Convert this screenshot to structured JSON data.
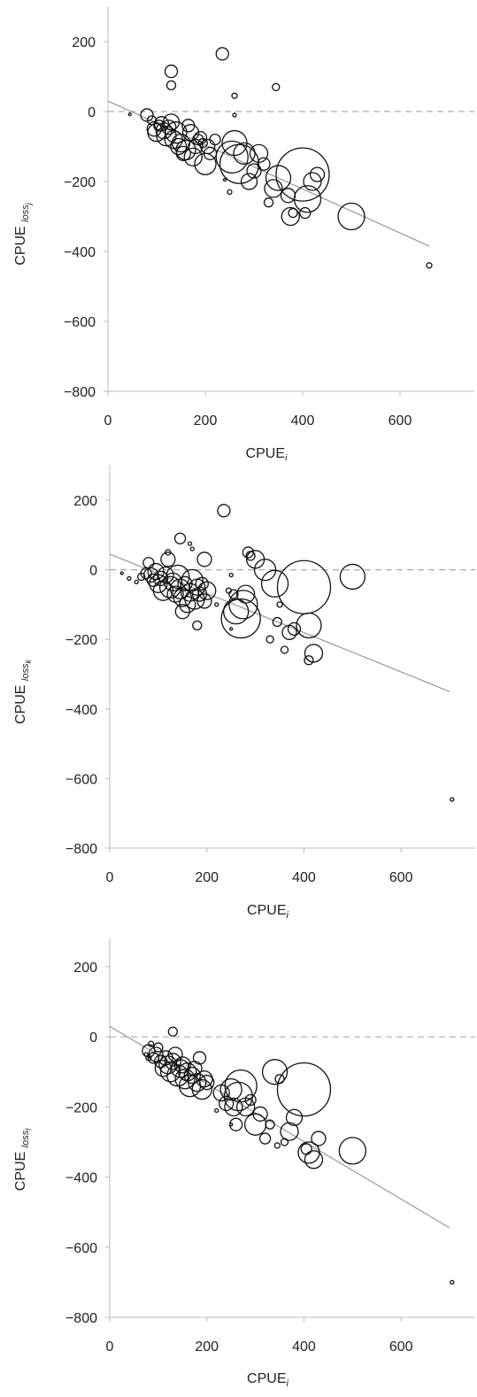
{
  "chart_data": [
    {
      "type": "scatter",
      "xlabel_base": "CPUE",
      "xlabel_sub": "i",
      "ylabel_base": "CPUE ",
      "ylabel_sub": "loss",
      "ylabel_subsub": "j",
      "xlim": [
        0,
        700
      ],
      "ylim": [
        -800,
        200
      ],
      "xticks": [
        0,
        200,
        400,
        600
      ],
      "yticks": [
        200,
        0,
        -200,
        -400,
        -600,
        -800
      ],
      "zero_line": true,
      "trend_line": [
        [
          0,
          30
        ],
        [
          660,
          -385
        ]
      ],
      "points": [
        [
          45,
          -8,
          1.5
        ],
        [
          80,
          -10,
          7
        ],
        [
          90,
          -25,
          5
        ],
        [
          95,
          -50,
          8
        ],
        [
          100,
          -60,
          10
        ],
        [
          105,
          -40,
          6
        ],
        [
          110,
          -35,
          8
        ],
        [
          115,
          -55,
          9
        ],
        [
          120,
          -70,
          11
        ],
        [
          125,
          -45,
          8
        ],
        [
          130,
          -30,
          9
        ],
        [
          135,
          -80,
          10
        ],
        [
          140,
          -60,
          12
        ],
        [
          145,
          -100,
          9
        ],
        [
          150,
          -90,
          10
        ],
        [
          155,
          -120,
          8
        ],
        [
          160,
          -110,
          11
        ],
        [
          165,
          -40,
          7
        ],
        [
          170,
          -60,
          9
        ],
        [
          175,
          -130,
          10
        ],
        [
          180,
          -100,
          8
        ],
        [
          185,
          -80,
          6
        ],
        [
          190,
          -75,
          7
        ],
        [
          195,
          -90,
          5
        ],
        [
          200,
          -150,
          12
        ],
        [
          205,
          -100,
          8
        ],
        [
          210,
          -120,
          7
        ],
        [
          220,
          -80,
          6
        ],
        [
          130,
          115,
          7
        ],
        [
          130,
          75,
          5
        ],
        [
          235,
          165,
          7
        ],
        [
          260,
          45,
          3
        ],
        [
          345,
          70,
          4
        ],
        [
          260,
          -10,
          2
        ],
        [
          250,
          -230,
          2.5
        ],
        [
          255,
          -130,
          18
        ],
        [
          260,
          -90,
          14
        ],
        [
          270,
          -150,
          22
        ],
        [
          280,
          -120,
          12
        ],
        [
          290,
          -200,
          9
        ],
        [
          300,
          -170,
          8
        ],
        [
          310,
          -120,
          10
        ],
        [
          320,
          -150,
          7
        ],
        [
          330,
          -260,
          5
        ],
        [
          340,
          -220,
          10
        ],
        [
          350,
          -190,
          14
        ],
        [
          370,
          -240,
          8
        ],
        [
          375,
          -300,
          10
        ],
        [
          380,
          -290,
          5
        ],
        [
          400,
          -180,
          30
        ],
        [
          405,
          -290,
          6
        ],
        [
          410,
          -250,
          15
        ],
        [
          420,
          -200,
          10
        ],
        [
          430,
          -180,
          8
        ],
        [
          500,
          -300,
          15
        ],
        [
          660,
          -440,
          3
        ],
        [
          240,
          -195,
          1.5
        ]
      ]
    },
    {
      "type": "scatter",
      "xlabel_base": "CPUE",
      "xlabel_sub": "i",
      "ylabel_base": "CPUE ",
      "ylabel_sub": "loss",
      "ylabel_subsub": "k",
      "xlim": [
        0,
        700
      ],
      "ylim": [
        -800,
        200
      ],
      "xticks": [
        0,
        200,
        400,
        600
      ],
      "yticks": [
        200,
        0,
        -200,
        -400,
        -600,
        -800
      ],
      "zero_line": true,
      "trend_line": [
        [
          0,
          45
        ],
        [
          700,
          -350
        ]
      ],
      "points": [
        [
          25,
          -10,
          1.5
        ],
        [
          40,
          -25,
          2
        ],
        [
          55,
          -35,
          2
        ],
        [
          65,
          -20,
          4
        ],
        [
          75,
          -10,
          6
        ],
        [
          80,
          20,
          6
        ],
        [
          85,
          -15,
          8
        ],
        [
          90,
          -30,
          7
        ],
        [
          95,
          -5,
          9
        ],
        [
          100,
          -40,
          10
        ],
        [
          105,
          -25,
          8
        ],
        [
          110,
          -60,
          11
        ],
        [
          115,
          -15,
          9
        ],
        [
          120,
          30,
          8
        ],
        [
          125,
          -50,
          12
        ],
        [
          130,
          -35,
          10
        ],
        [
          135,
          -70,
          9
        ],
        [
          140,
          -20,
          13
        ],
        [
          145,
          -55,
          11
        ],
        [
          150,
          -80,
          10
        ],
        [
          155,
          -40,
          8
        ],
        [
          160,
          -100,
          9
        ],
        [
          165,
          -65,
          10
        ],
        [
          170,
          -30,
          12
        ],
        [
          175,
          -85,
          11
        ],
        [
          180,
          -50,
          9
        ],
        [
          185,
          -70,
          8
        ],
        [
          190,
          -40,
          7
        ],
        [
          195,
          -90,
          8
        ],
        [
          200,
          -60,
          10
        ],
        [
          120,
          50,
          3
        ],
        [
          145,
          90,
          6
        ],
        [
          165,
          75,
          2
        ],
        [
          170,
          60,
          2
        ],
        [
          195,
          30,
          8
        ],
        [
          180,
          -160,
          5
        ],
        [
          150,
          -120,
          8
        ],
        [
          220,
          -100,
          2
        ],
        [
          235,
          170,
          7
        ],
        [
          245,
          -60,
          3
        ],
        [
          255,
          -70,
          5
        ],
        [
          260,
          -120,
          14
        ],
        [
          270,
          -140,
          22
        ],
        [
          275,
          -100,
          16
        ],
        [
          280,
          -70,
          10
        ],
        [
          285,
          50,
          6
        ],
        [
          290,
          40,
          5
        ],
        [
          300,
          30,
          10
        ],
        [
          320,
          0,
          12
        ],
        [
          330,
          -200,
          4
        ],
        [
          340,
          -40,
          15
        ],
        [
          345,
          -150,
          5
        ],
        [
          350,
          -100,
          3
        ],
        [
          360,
          -230,
          4
        ],
        [
          370,
          -180,
          8
        ],
        [
          380,
          -170,
          7
        ],
        [
          400,
          -50,
          30
        ],
        [
          410,
          -160,
          14
        ],
        [
          420,
          -240,
          10
        ],
        [
          410,
          -260,
          5
        ],
        [
          500,
          -20,
          14
        ],
        [
          705,
          -660,
          2
        ],
        [
          250,
          -170,
          1.5
        ],
        [
          250,
          -15,
          2
        ]
      ]
    },
    {
      "type": "scatter",
      "xlabel_base": "CPUE",
      "xlabel_sub": "i",
      "ylabel_base": "CPUE ",
      "ylabel_sub": "loss",
      "ylabel_subsub": "l",
      "xlim": [
        0,
        700
      ],
      "ylim": [
        -800,
        200
      ],
      "xticks": [
        0,
        200,
        400,
        600
      ],
      "yticks": [
        200,
        0,
        -200,
        -400,
        -600,
        -800
      ],
      "zero_line": true,
      "trend_line": [
        [
          0,
          30
        ],
        [
          700,
          -545
        ]
      ],
      "points": [
        [
          80,
          -40,
          7
        ],
        [
          85,
          -20,
          3
        ],
        [
          90,
          -60,
          6
        ],
        [
          95,
          -50,
          8
        ],
        [
          100,
          -30,
          5
        ],
        [
          105,
          -70,
          7
        ],
        [
          110,
          -90,
          9
        ],
        [
          115,
          -60,
          8
        ],
        [
          120,
          -80,
          10
        ],
        [
          125,
          -100,
          11
        ],
        [
          130,
          -70,
          9
        ],
        [
          135,
          -50,
          8
        ],
        [
          140,
          -110,
          12
        ],
        [
          145,
          -90,
          10
        ],
        [
          150,
          -80,
          9
        ],
        [
          155,
          -120,
          11
        ],
        [
          160,
          -100,
          10
        ],
        [
          165,
          -140,
          12
        ],
        [
          170,
          -110,
          9
        ],
        [
          175,
          -90,
          8
        ],
        [
          180,
          -130,
          10
        ],
        [
          185,
          -60,
          7
        ],
        [
          190,
          -150,
          11
        ],
        [
          195,
          -120,
          9
        ],
        [
          200,
          -130,
          8
        ],
        [
          130,
          15,
          5
        ],
        [
          80,
          -60,
          3
        ],
        [
          75,
          -50,
          2
        ],
        [
          220,
          -210,
          2
        ],
        [
          230,
          -160,
          9
        ],
        [
          240,
          -190,
          8
        ],
        [
          250,
          -150,
          12
        ],
        [
          255,
          -200,
          10
        ],
        [
          260,
          -250,
          7
        ],
        [
          265,
          -170,
          16
        ],
        [
          270,
          -140,
          18
        ],
        [
          280,
          -200,
          10
        ],
        [
          290,
          -180,
          6
        ],
        [
          300,
          -250,
          12
        ],
        [
          310,
          -220,
          8
        ],
        [
          320,
          -290,
          6
        ],
        [
          330,
          -250,
          5
        ],
        [
          340,
          -100,
          14
        ],
        [
          345,
          -310,
          3
        ],
        [
          350,
          -120,
          5
        ],
        [
          360,
          -300,
          4
        ],
        [
          370,
          -270,
          10
        ],
        [
          380,
          -230,
          9
        ],
        [
          400,
          -150,
          30
        ],
        [
          405,
          -320,
          6
        ],
        [
          410,
          -330,
          12
        ],
        [
          420,
          -350,
          10
        ],
        [
          430,
          -290,
          8
        ],
        [
          500,
          -325,
          15
        ],
        [
          705,
          -700,
          2
        ],
        [
          250,
          -250,
          1.5
        ]
      ]
    }
  ]
}
